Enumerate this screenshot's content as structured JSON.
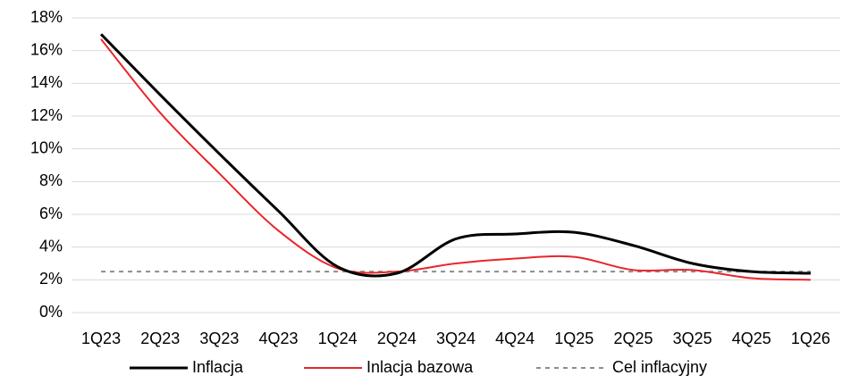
{
  "chart_data": {
    "type": "line",
    "categories": [
      "1Q23",
      "2Q23",
      "3Q23",
      "4Q23",
      "1Q24",
      "2Q24",
      "3Q24",
      "4Q24",
      "1Q25",
      "2Q25",
      "3Q25",
      "4Q25",
      "1Q26"
    ],
    "series": [
      {
        "name": "Inflacja",
        "color": "#000000",
        "width": 3,
        "dashed": false,
        "values": [
          17.0,
          13.3,
          9.7,
          6.2,
          2.8,
          2.4,
          4.5,
          4.8,
          4.9,
          4.1,
          3.0,
          2.5,
          2.4
        ]
      },
      {
        "name": "Inlacja bazowa",
        "color": "#e8262a",
        "width": 2,
        "dashed": false,
        "values": [
          16.7,
          12.2,
          8.5,
          5.0,
          2.7,
          2.5,
          3.0,
          3.3,
          3.4,
          2.6,
          2.6,
          2.1,
          2.0
        ]
      },
      {
        "name": "Cel inflacyjny",
        "color": "#8c8c8c",
        "width": 2,
        "dashed": true,
        "values": [
          2.5,
          2.5,
          2.5,
          2.5,
          2.5,
          2.5,
          2.5,
          2.5,
          2.5,
          2.5,
          2.5,
          2.5,
          2.5
        ]
      }
    ],
    "ylim": [
      0,
      18
    ],
    "yticks": [
      {
        "value": 0,
        "label": "0%"
      },
      {
        "value": 2,
        "label": "2%"
      },
      {
        "value": 4,
        "label": "4%"
      },
      {
        "value": 6,
        "label": "6%"
      },
      {
        "value": 8,
        "label": "8%"
      },
      {
        "value": 10,
        "label": "10%"
      },
      {
        "value": 12,
        "label": "12%"
      },
      {
        "value": 14,
        "label": "14%"
      },
      {
        "value": 16,
        "label": "16%"
      },
      {
        "value": 18,
        "label": "18%"
      }
    ],
    "grid": true,
    "smooth": true,
    "legend": "bottom"
  }
}
